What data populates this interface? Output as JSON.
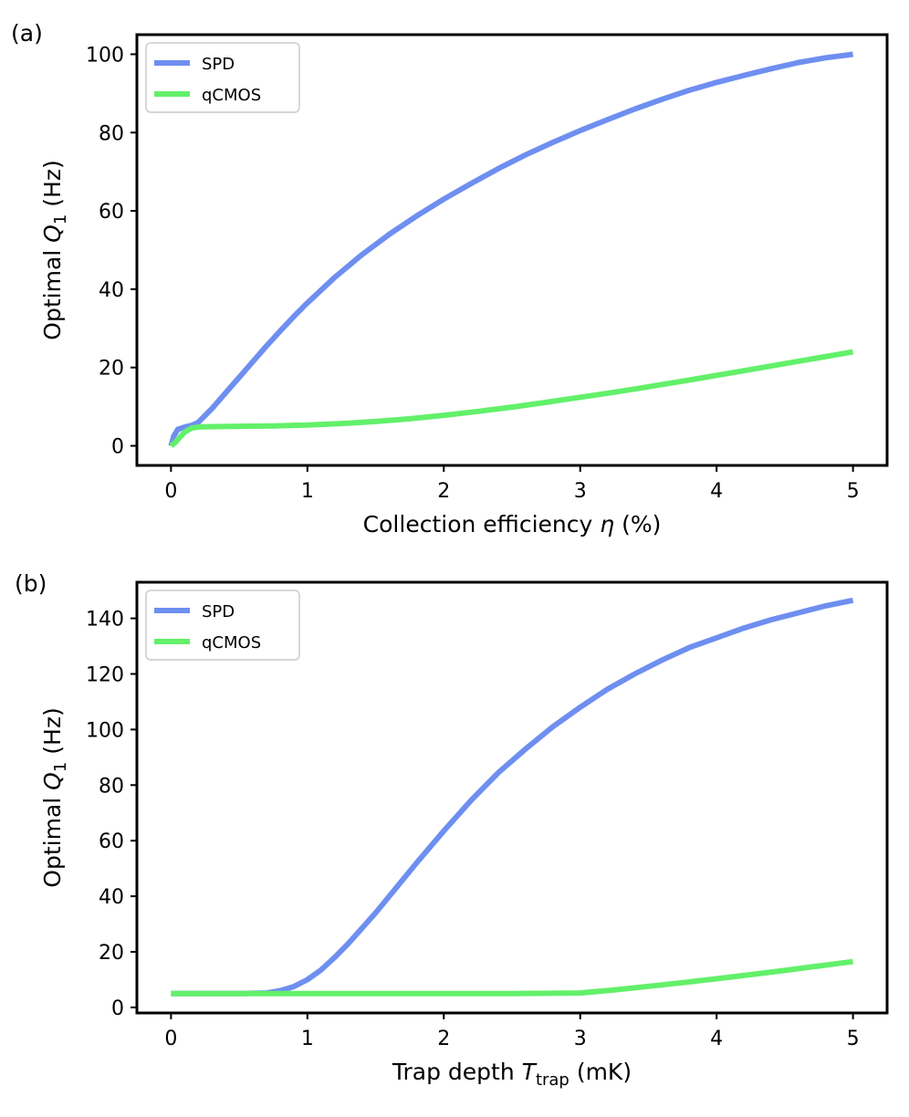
{
  "chart_data": [
    {
      "type": "line",
      "panel_label": "(a)",
      "title": "",
      "xlabel": "Collection efficiency",
      "xlabel_symbol": "η",
      "xlabel_unit": "(%)",
      "ylabel": "Optimal",
      "ylabel_symbol": "Q",
      "ylabel_sub": "1",
      "ylabel_unit": "(Hz)",
      "xlim": [
        -0.25,
        5.25
      ],
      "ylim": [
        -5,
        105
      ],
      "xticks": [
        0,
        1,
        2,
        3,
        4,
        5
      ],
      "yticks": [
        0,
        20,
        40,
        60,
        80,
        100
      ],
      "grid": false,
      "legend_position": "top-left",
      "series": [
        {
          "name": "SPD",
          "color": "#6e8ff0",
          "x": [
            0,
            0.02,
            0.05,
            0.1,
            0.15,
            0.2,
            0.3,
            0.4,
            0.5,
            0.6,
            0.7,
            0.8,
            0.9,
            1.0,
            1.2,
            1.4,
            1.6,
            1.8,
            2.0,
            2.2,
            2.4,
            2.6,
            2.8,
            3.0,
            3.2,
            3.4,
            3.6,
            3.8,
            4.0,
            4.2,
            4.4,
            4.6,
            4.8,
            5.0
          ],
          "y": [
            0,
            2.5,
            4.2,
            4.8,
            5.2,
            6.0,
            9.5,
            13.5,
            17.5,
            21.5,
            25.5,
            29.3,
            33.0,
            36.5,
            43.0,
            48.8,
            54.0,
            58.7,
            63.0,
            67.0,
            70.8,
            74.3,
            77.5,
            80.5,
            83.3,
            86.0,
            88.5,
            90.8,
            92.8,
            94.6,
            96.3,
            97.9,
            99.1,
            100.0
          ]
        },
        {
          "name": "qCMOS",
          "color": "#63f06a",
          "x": [
            0,
            0.03,
            0.06,
            0.1,
            0.15,
            0.2,
            0.3,
            0.5,
            0.75,
            1.0,
            1.25,
            1.5,
            1.75,
            2.0,
            2.25,
            2.5,
            2.75,
            3.0,
            3.25,
            3.5,
            3.75,
            4.0,
            4.25,
            4.5,
            4.75,
            5.0
          ],
          "y": [
            0,
            0.8,
            2.0,
            3.5,
            4.5,
            4.8,
            4.9,
            5.0,
            5.1,
            5.3,
            5.7,
            6.2,
            6.9,
            7.8,
            8.8,
            9.9,
            11.1,
            12.4,
            13.7,
            15.1,
            16.5,
            18.0,
            19.5,
            21.0,
            22.5,
            24.0
          ]
        }
      ]
    },
    {
      "type": "line",
      "panel_label": "(b)",
      "title": "",
      "xlabel": "Trap depth",
      "xlabel_symbol": "T",
      "xlabel_sub": "trap",
      "xlabel_unit": "(mK)",
      "ylabel": "Optimal",
      "ylabel_symbol": "Q",
      "ylabel_sub": "1",
      "ylabel_unit": "(Hz)",
      "xlim": [
        -0.25,
        5.25
      ],
      "ylim": [
        -2,
        153
      ],
      "xticks": [
        0,
        1,
        2,
        3,
        4,
        5
      ],
      "yticks": [
        0,
        20,
        40,
        60,
        80,
        100,
        120,
        140
      ],
      "grid": false,
      "legend_position": "top-left",
      "series": [
        {
          "name": "SPD",
          "color": "#6e8ff0",
          "x": [
            0,
            0.5,
            0.7,
            0.8,
            0.9,
            1.0,
            1.1,
            1.2,
            1.3,
            1.4,
            1.5,
            1.6,
            1.8,
            2.0,
            2.2,
            2.4,
            2.6,
            2.8,
            3.0,
            3.2,
            3.4,
            3.6,
            3.8,
            4.0,
            4.2,
            4.4,
            4.6,
            4.8,
            5.0
          ],
          "y": [
            5,
            5,
            5.2,
            6.0,
            7.5,
            10.0,
            13.5,
            18.0,
            23.0,
            28.5,
            34.0,
            40.0,
            52.0,
            63.5,
            74.5,
            84.5,
            93.0,
            101.0,
            108.0,
            114.5,
            120.0,
            125.0,
            129.5,
            133.0,
            136.5,
            139.5,
            142.0,
            144.5,
            146.5
          ]
        },
        {
          "name": "qCMOS",
          "color": "#63f06a",
          "x": [
            0,
            0.5,
            1.0,
            1.5,
            2.0,
            2.5,
            3.0,
            3.25,
            3.5,
            3.75,
            4.0,
            4.25,
            4.5,
            4.75,
            5.0
          ],
          "y": [
            5,
            5,
            5,
            5,
            5,
            5,
            5.2,
            6.3,
            7.6,
            8.9,
            10.3,
            11.8,
            13.3,
            14.9,
            16.5
          ]
        }
      ]
    }
  ]
}
